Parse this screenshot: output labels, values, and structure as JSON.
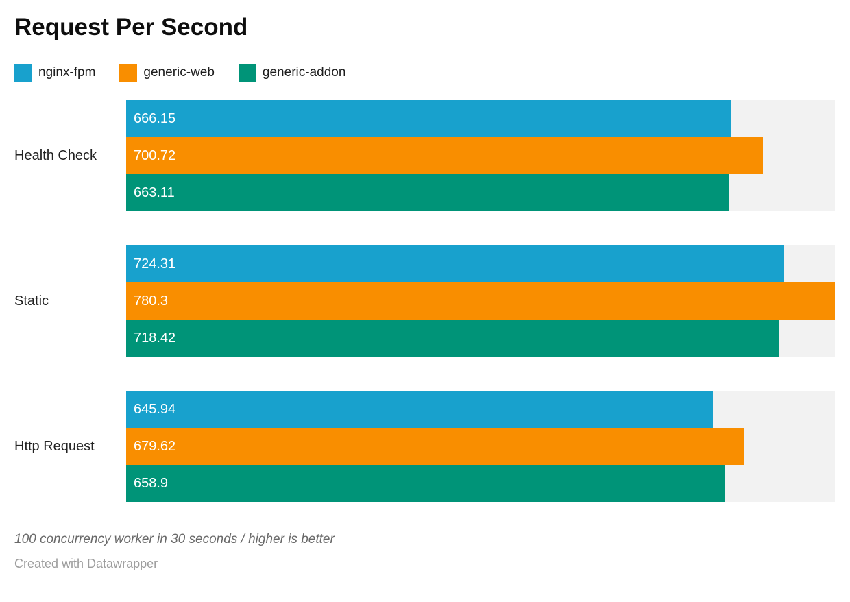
{
  "header": {
    "title": "Request Per Second"
  },
  "chart_data": {
    "type": "bar",
    "orientation": "horizontal",
    "title": "Request Per Second",
    "xlabel": "",
    "ylabel": "",
    "xlim": [
      0,
      780.3
    ],
    "grid": false,
    "legend_position": "top",
    "track_color": "#f2f2f2",
    "value_labels": "inside-start",
    "categories": [
      "Health Check",
      "Static",
      "Http Request"
    ],
    "series": [
      {
        "name": "nginx-fpm",
        "color": "#18a1cd",
        "values": [
          666.15,
          724.31,
          645.94
        ]
      },
      {
        "name": "generic-web",
        "color": "#f98e00",
        "values": [
          700.72,
          780.3,
          679.62
        ]
      },
      {
        "name": "generic-addon",
        "color": "#009478",
        "values": [
          663.11,
          718.42,
          658.9
        ]
      }
    ]
  },
  "footer": {
    "note": "100 concurrency worker in 30 seconds / higher is better",
    "attribution": "Created with Datawrapper"
  }
}
